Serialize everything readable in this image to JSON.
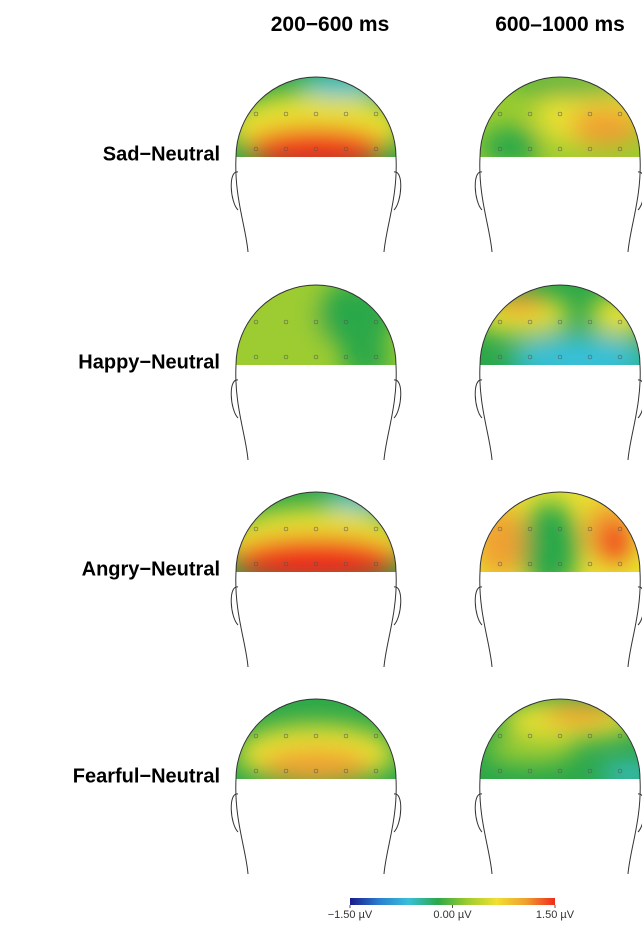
{
  "columns": [
    "200−600 ms",
    "600–1000 ms"
  ],
  "rows": [
    "Sad−Neutral",
    "Happy−Neutral",
    "Angry−Neutral",
    "Fearful−Neutral"
  ],
  "colorbar": {
    "range": [
      -1.5,
      1.5
    ],
    "colors": [
      "#1a1a8c",
      "#2a7fd0",
      "#38c0d8",
      "#2ca84a",
      "#9ccc30",
      "#f0e030",
      "#f0a030",
      "#f02a1a"
    ],
    "ticks": [
      {
        "value": -1.5,
        "label": "−1.50 µV"
      },
      {
        "value": 0,
        "label": "0.00 µV"
      },
      {
        "value": 1.5,
        "label": "1.50 µV"
      }
    ]
  }
}
